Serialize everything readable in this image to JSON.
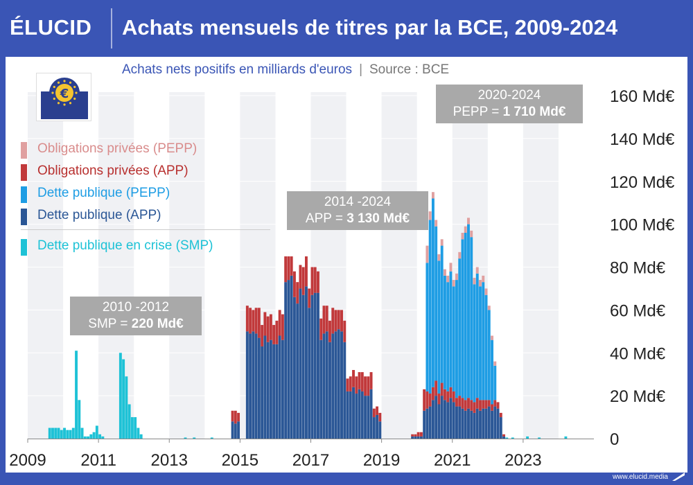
{
  "header": {
    "brand": "ÉLUCID",
    "title": "Achats mensuels de titres par la BCE, 2009-2024"
  },
  "subtitle": {
    "text": "Achats nets positifs en milliards d'euros",
    "separator": "|",
    "source": "Source : BCE"
  },
  "footer": {
    "url": "www.elucid.media"
  },
  "logo": {
    "name": "ecb-euro-logo"
  },
  "legend": [
    {
      "label": "Obligations privées (PEPP)",
      "color": "#e0a0a0",
      "text_color": "#d98c8c"
    },
    {
      "label": "Obligations privées (APP)",
      "color": "#c1393b",
      "text_color": "#b8302f"
    },
    {
      "label": "Dette publique (PEPP)",
      "color": "#1e9de4",
      "text_color": "#1e9de4"
    },
    {
      "label": "Dette publique (APP)",
      "color": "#2b5796",
      "text_color": "#2b5796"
    },
    {
      "label": "Dette publique en crise (SMP)",
      "color": "#1ec2d6",
      "text_color": "#1ec2d6"
    }
  ],
  "annotations": [
    {
      "period": "2010 -2012",
      "label": "SMP = ",
      "value": "220 Md€"
    },
    {
      "period": "2014 -2024",
      "label": "APP = ",
      "value": "3 130 Md€"
    },
    {
      "period": "2020-2024",
      "label": "PEPP = ",
      "value": "1 710  Md€"
    }
  ],
  "chart_data": {
    "type": "bar",
    "stacked": true,
    "title": "Achats mensuels de titres par la BCE, 2009-2024",
    "subtitle": "Achats nets positifs en milliards d'euros",
    "unit": "Md€",
    "y_range": [
      0,
      160
    ],
    "y_ticks": [
      "0",
      "20 Md€",
      "40 Md€",
      "60 Md€",
      "80 Md€",
      "100 Md€",
      "120 Md€",
      "140 Md€",
      "160 Md€"
    ],
    "y_tick_values": [
      0,
      20,
      40,
      60,
      80,
      100,
      120,
      140,
      160
    ],
    "x_ticks": [
      "2009",
      "2011",
      "2013",
      "2015",
      "2017",
      "2019",
      "2021",
      "2023"
    ],
    "x_range": [
      "2009-01",
      "2024-12"
    ],
    "series_names": [
      "Dette publique en crise (SMP)",
      "Dette publique (APP)",
      "Obligations privées (APP)",
      "Dette publique (PEPP)",
      "Obligations privées (PEPP)"
    ],
    "colors": [
      "#1ec2d6",
      "#2b5796",
      "#c1393b",
      "#1e9de4",
      "#e0a0a0"
    ],
    "grid": "vertical bands",
    "smp": [
      [
        "2009-08",
        5
      ],
      [
        "2009-09",
        5
      ],
      [
        "2009-10",
        5
      ],
      [
        "2009-11",
        5
      ],
      [
        "2009-12",
        4
      ],
      [
        "2010-01",
        5
      ],
      [
        "2010-02",
        4
      ],
      [
        "2010-03",
        4
      ],
      [
        "2010-04",
        5
      ],
      [
        "2010-05",
        41
      ],
      [
        "2010-06",
        18
      ],
      [
        "2010-07",
        5
      ],
      [
        "2010-08",
        1
      ],
      [
        "2010-09",
        1
      ],
      [
        "2010-10",
        2
      ],
      [
        "2010-11",
        3
      ],
      [
        "2010-12",
        6
      ],
      [
        "2011-01",
        2
      ],
      [
        "2011-02",
        1
      ],
      [
        "2011-08",
        40
      ],
      [
        "2011-09",
        37
      ],
      [
        "2011-10",
        29
      ],
      [
        "2011-11",
        16
      ],
      [
        "2011-12",
        10
      ],
      [
        "2012-01",
        10
      ],
      [
        "2012-02",
        5
      ],
      [
        "2012-03",
        2
      ],
      [
        "2013-06",
        0.5
      ],
      [
        "2013-09",
        0.5
      ],
      [
        "2014-03",
        0.5
      ],
      [
        "2022-07",
        0.5
      ],
      [
        "2022-09",
        0.5
      ],
      [
        "2023-02",
        1
      ],
      [
        "2023-06",
        0.5
      ],
      [
        "2024-03",
        1
      ]
    ],
    "app": [
      [
        "2014-10",
        8,
        5
      ],
      [
        "2014-11",
        7,
        6
      ],
      [
        "2014-12",
        8,
        4
      ],
      [
        "2015-03",
        50,
        12
      ],
      [
        "2015-04",
        49,
        12
      ],
      [
        "2015-05",
        50,
        10
      ],
      [
        "2015-06",
        49,
        12
      ],
      [
        "2015-07",
        47,
        14
      ],
      [
        "2015-08",
        43,
        10
      ],
      [
        "2015-09",
        48,
        11
      ],
      [
        "2015-10",
        45,
        12
      ],
      [
        "2015-11",
        46,
        12
      ],
      [
        "2015-12",
        44,
        9
      ],
      [
        "2016-01",
        44,
        11
      ],
      [
        "2016-02",
        48,
        12
      ],
      [
        "2016-03",
        46,
        12
      ],
      [
        "2016-04",
        73,
        12
      ],
      [
        "2016-05",
        74,
        11
      ],
      [
        "2016-06",
        76,
        9
      ],
      [
        "2016-07",
        66,
        12
      ],
      [
        "2016-08",
        63,
        10
      ],
      [
        "2016-09",
        70,
        11
      ],
      [
        "2016-10",
        67,
        13
      ],
      [
        "2016-11",
        71,
        14
      ],
      [
        "2016-12",
        61,
        9
      ],
      [
        "2017-01",
        67,
        13
      ],
      [
        "2017-02",
        68,
        12
      ],
      [
        "2017-03",
        68,
        10
      ],
      [
        "2017-04",
        46,
        10
      ],
      [
        "2017-05",
        49,
        13
      ],
      [
        "2017-06",
        50,
        12
      ],
      [
        "2017-07",
        45,
        10
      ],
      [
        "2017-08",
        49,
        12
      ],
      [
        "2017-09",
        50,
        10
      ],
      [
        "2017-10",
        51,
        9
      ],
      [
        "2017-11",
        50,
        10
      ],
      [
        "2017-12",
        45,
        10
      ],
      [
        "2018-01",
        22,
        6
      ],
      [
        "2018-02",
        22,
        7
      ],
      [
        "2018-03",
        24,
        8
      ],
      [
        "2018-04",
        21,
        8
      ],
      [
        "2018-05",
        23,
        8
      ],
      [
        "2018-06",
        22,
        9
      ],
      [
        "2018-07",
        20,
        9
      ],
      [
        "2018-08",
        20,
        9
      ],
      [
        "2018-09",
        23,
        8
      ],
      [
        "2018-10",
        10,
        4
      ],
      [
        "2018-11",
        11,
        4
      ],
      [
        "2018-12",
        8,
        4
      ],
      [
        "2019-11",
        1,
        1
      ],
      [
        "2019-12",
        1,
        1
      ],
      [
        "2020-01",
        1,
        2
      ],
      [
        "2020-02",
        1,
        2
      ],
      [
        "2020-03",
        13,
        10
      ],
      [
        "2020-04",
        14,
        8
      ],
      [
        "2020-05",
        15,
        6
      ],
      [
        "2020-06",
        18,
        6
      ],
      [
        "2020-07",
        20,
        7
      ],
      [
        "2020-08",
        16,
        5
      ],
      [
        "2020-09",
        20,
        6
      ],
      [
        "2020-10",
        18,
        5
      ],
      [
        "2020-11",
        17,
        5
      ],
      [
        "2020-12",
        19,
        5
      ],
      [
        "2021-01",
        17,
        5
      ],
      [
        "2021-02",
        15,
        4
      ],
      [
        "2021-03",
        15,
        5
      ],
      [
        "2021-04",
        14,
        5
      ],
      [
        "2021-05",
        13,
        5
      ],
      [
        "2021-06",
        14,
        5
      ],
      [
        "2021-07",
        13,
        5
      ],
      [
        "2021-08",
        12,
        5
      ],
      [
        "2021-09",
        14,
        5
      ],
      [
        "2021-10",
        13,
        5
      ],
      [
        "2021-11",
        14,
        4
      ],
      [
        "2021-12",
        14,
        4
      ],
      [
        "2022-01",
        15,
        3
      ],
      [
        "2022-02",
        13,
        3
      ],
      [
        "2022-03",
        15,
        3
      ],
      [
        "2022-04",
        14,
        3
      ],
      [
        "2022-05",
        10,
        2
      ],
      [
        "2022-06",
        1,
        1
      ]
    ],
    "pepp": [
      [
        "2020-03",
        0,
        0
      ],
      [
        "2020-04",
        60,
        8
      ],
      [
        "2020-05",
        81,
        4
      ],
      [
        "2020-06",
        88,
        3
      ],
      [
        "2020-07",
        72,
        3
      ],
      [
        "2020-08",
        62,
        3
      ],
      [
        "2020-09",
        64,
        3
      ],
      [
        "2020-10",
        53,
        3
      ],
      [
        "2020-11",
        51,
        3
      ],
      [
        "2020-12",
        54,
        4
      ],
      [
        "2021-01",
        49,
        3
      ],
      [
        "2021-02",
        55,
        3
      ],
      [
        "2021-03",
        64,
        3
      ],
      [
        "2021-04",
        74,
        3
      ],
      [
        "2021-05",
        78,
        3
      ],
      [
        "2021-06",
        81,
        3
      ],
      [
        "2021-07",
        76,
        3
      ],
      [
        "2021-08",
        55,
        3
      ],
      [
        "2021-09",
        58,
        3
      ],
      [
        "2021-10",
        53,
        3
      ],
      [
        "2021-11",
        55,
        3
      ],
      [
        "2021-12",
        49,
        3
      ],
      [
        "2022-01",
        42,
        2
      ],
      [
        "2022-02",
        30,
        2
      ],
      [
        "2022-03",
        16,
        2
      ]
    ]
  }
}
